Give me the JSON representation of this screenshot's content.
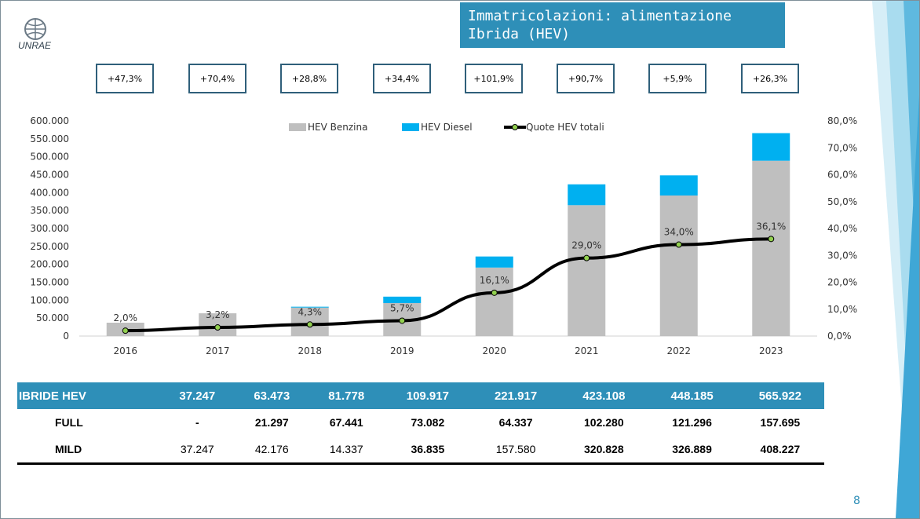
{
  "slide": {
    "title": "Immatricolazioni: alimentazione Ibrida (HEV)",
    "logo_text": "UNRAE",
    "page_number": "8",
    "accent": "#2e8fb8"
  },
  "growth_labels": [
    "+47,3%",
    "+70,4%",
    "+28,8%",
    "+34,4%",
    "+101,9%",
    "+90,7%",
    "+5,9%",
    "+26,3%"
  ],
  "chart_data": {
    "type": "bar",
    "stacked": true,
    "categories": [
      "2016",
      "2017",
      "2018",
      "2019",
      "2020",
      "2021",
      "2022",
      "2023"
    ],
    "series": [
      {
        "name": "HEV Benzina",
        "color": "#bfbfbf",
        "values": [
          37247,
          63473,
          79500,
          92000,
          191000,
          365000,
          392000,
          489000
        ]
      },
      {
        "name": "HEV Diesel",
        "color": "#00b0f0",
        "values": [
          0,
          0,
          2278,
          17917,
          30917,
          58108,
          56185,
          76922
        ]
      },
      {
        "name": "Quote HEV totali",
        "type": "line",
        "axis": "right",
        "color": "#000000",
        "marker_color": "#92d050",
        "values": [
          2.0,
          3.2,
          4.3,
          5.7,
          16.1,
          29.0,
          34.0,
          36.1
        ],
        "labels": [
          "2,0%",
          "3,2%",
          "4,3%",
          "5,7%",
          "16,1%",
          "29,0%",
          "34,0%",
          "36,1%"
        ]
      }
    ],
    "y_left": {
      "range": [
        0,
        600000
      ],
      "ticks": [
        "0",
        "50.000",
        "100.000",
        "150.000",
        "200.000",
        "250.000",
        "300.000",
        "350.000",
        "400.000",
        "450.000",
        "500.000",
        "550.000",
        "600.000"
      ]
    },
    "y_right": {
      "range": [
        0,
        80
      ],
      "ticks": [
        "0,0%",
        "10,0%",
        "20,0%",
        "30,0%",
        "40,0%",
        "50,0%",
        "60,0%",
        "70,0%",
        "80,0%"
      ]
    },
    "legend_position": "top",
    "grid": false
  },
  "table": {
    "rows": [
      {
        "label": "IBRIDE HEV",
        "values": [
          "37.247",
          "63.473",
          "81.778",
          "109.917",
          "221.917",
          "423.108",
          "448.185",
          "565.922"
        ]
      },
      {
        "label": "FULL",
        "values": [
          "-",
          "21.297",
          "67.441",
          "73.082",
          "64.337",
          "102.280",
          "121.296",
          "157.695"
        ]
      },
      {
        "label": "MILD",
        "values": [
          "37.247",
          "42.176",
          "14.337",
          "36.835",
          "157.580",
          "320.828",
          "326.889",
          "408.227"
        ]
      }
    ]
  }
}
